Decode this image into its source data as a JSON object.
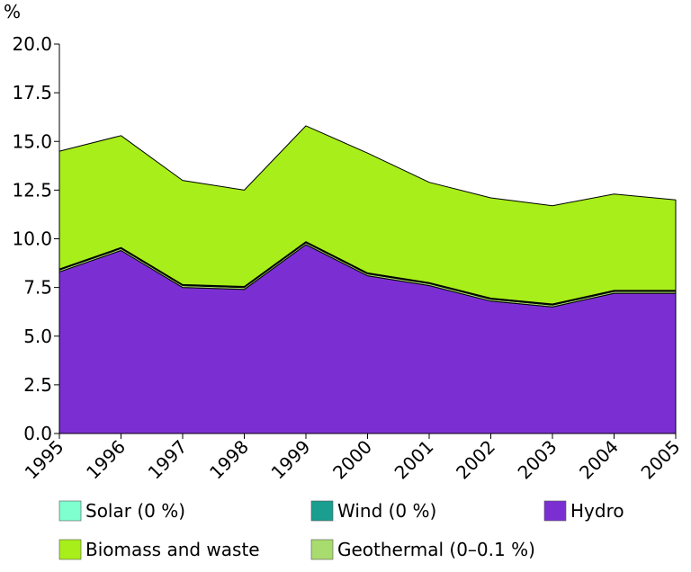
{
  "chart_data": {
    "type": "area",
    "stacked": true,
    "ylabel": "%",
    "ylim": [
      0,
      20
    ],
    "yticks": [
      "0.0",
      "2.5",
      "5.0",
      "7.5",
      "10.0",
      "12.5",
      "15.0",
      "17.5",
      "20.0"
    ],
    "categories": [
      "1995",
      "1996",
      "1997",
      "1998",
      "1999",
      "2000",
      "2001",
      "2002",
      "2003",
      "2004",
      "2005"
    ],
    "grid": false,
    "legend_position": "bottom",
    "series": [
      {
        "name": "Hydro",
        "color": "#7b2fd3",
        "values": [
          8.3,
          9.4,
          7.5,
          7.4,
          9.7,
          8.1,
          7.6,
          6.8,
          6.5,
          7.2,
          7.2
        ]
      },
      {
        "name": "Geothermal (0–0.1 %)",
        "color": "#a8dc6e",
        "values": [
          0.1,
          0.1,
          0.1,
          0.1,
          0.1,
          0.1,
          0.1,
          0.1,
          0.1,
          0.1,
          0.1
        ]
      },
      {
        "name": "Wind (0 %)",
        "color": "#1a9e8f",
        "values": [
          0.05,
          0.05,
          0.05,
          0.05,
          0.05,
          0.05,
          0.05,
          0.05,
          0.05,
          0.05,
          0.05
        ]
      },
      {
        "name": "Solar (0 %)",
        "color": "#7fffcf",
        "values": [
          0,
          0,
          0,
          0,
          0,
          0,
          0,
          0,
          0,
          0,
          0
        ]
      },
      {
        "name": "Biomass and waste",
        "color": "#a8ee1a",
        "values": [
          6.05,
          5.75,
          5.35,
          4.95,
          5.95,
          6.15,
          5.15,
          5.15,
          5.05,
          4.95,
          4.65
        ]
      }
    ],
    "legend": [
      {
        "series": "Solar (0 %)",
        "color": "#7fffcf"
      },
      {
        "series": "Wind (0 %)",
        "color": "#1a9e8f"
      },
      {
        "series": "Hydro",
        "color": "#7b2fd3"
      },
      {
        "series": "Biomass and waste",
        "color": "#a8ee1a"
      },
      {
        "series": "Geothermal (0–0.1 %)",
        "color": "#a8dc6e"
      }
    ]
  }
}
